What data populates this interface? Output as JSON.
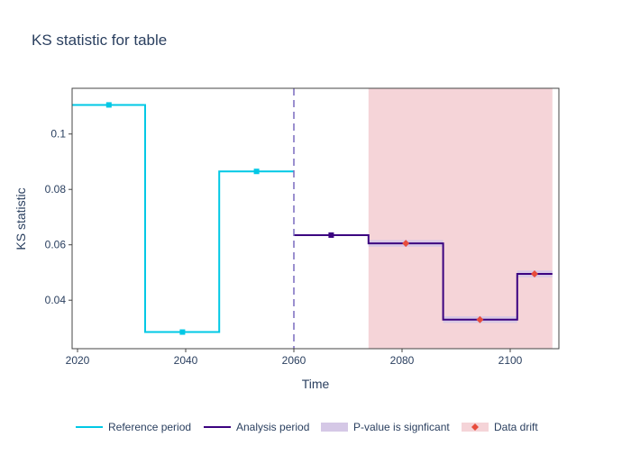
{
  "chart_data": {
    "type": "line",
    "title": "KS statistic for table",
    "xlabel": "Time",
    "ylabel": "KS statistic",
    "xlim": [
      2019,
      2109
    ],
    "ylim": [
      0.0225,
      0.1165
    ],
    "x_ticks": [
      2020,
      2040,
      2060,
      2080,
      2100
    ],
    "y_ticks": [
      0.04,
      0.06,
      0.08,
      0.1
    ],
    "y_tick_labels": [
      "0.04",
      "0.06",
      "0.08",
      "0.1"
    ],
    "grid": false,
    "legend_position": "bottom",
    "colors": {
      "reference": "#00c8e5",
      "analysis": "#3b0280",
      "pvalue_band": "#d5c8e6",
      "drift_region": "#f5d4d8",
      "drift_marker": "#e74c3c",
      "divider": "#7a6bbf",
      "axis": "#444444"
    },
    "reference_period": {
      "name": "Reference period",
      "steps": [
        {
          "x_start": 2019,
          "x_end": 2032.5,
          "y": 0.1105,
          "marker_x": 2025.8
        },
        {
          "x_start": 2032.5,
          "x_end": 2046.2,
          "y": 0.0285,
          "marker_x": 2039.4
        },
        {
          "x_start": 2046.2,
          "x_end": 2060,
          "y": 0.0865,
          "marker_x": 2053.1
        }
      ]
    },
    "analysis_period": {
      "name": "Analysis period",
      "steps": [
        {
          "x_start": 2060,
          "x_end": 2073.8,
          "y": 0.0635,
          "marker_x": 2066.9,
          "drift": false
        },
        {
          "x_start": 2073.8,
          "x_end": 2087.6,
          "y": 0.0605,
          "marker_x": 2080.7,
          "drift": true
        },
        {
          "x_start": 2087.6,
          "x_end": 2101.3,
          "y": 0.033,
          "marker_x": 2094.4,
          "drift": true
        },
        {
          "x_start": 2101.3,
          "x_end": 2107.8,
          "y": 0.0495,
          "marker_x": 2104.5,
          "drift": true
        }
      ]
    },
    "period_divider_x": 2060,
    "drift_region": {
      "x_start": 2073.8,
      "x_end": 2107.8
    },
    "pvalue_band_halfwidth": 0.0012,
    "legend": [
      {
        "label": "Reference period",
        "symbol": "line",
        "color_key": "reference"
      },
      {
        "label": "Analysis period",
        "symbol": "line",
        "color_key": "analysis"
      },
      {
        "label": "P-value is signficant",
        "symbol": "band",
        "color_key": "pvalue_band"
      },
      {
        "label": "Data drift",
        "symbol": "diamond-band",
        "color_key": "drift_marker"
      }
    ]
  }
}
